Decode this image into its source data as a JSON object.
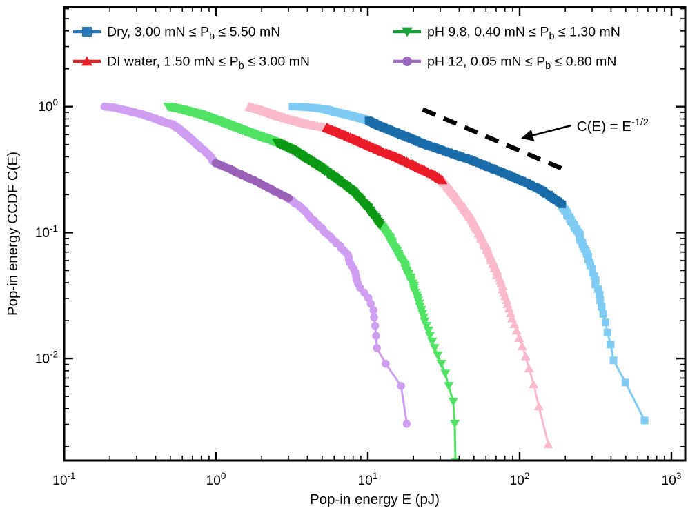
{
  "chart_data": {
    "type": "scatter",
    "title": "",
    "xlabel": "Pop-in energy E (pJ)",
    "ylabel": "Pop-in energy CCDF C(E)",
    "x_scale": "log",
    "y_scale": "log",
    "xlim": [
      0.1,
      1233
    ],
    "ylim": [
      0.00155,
      6.2
    ],
    "grid": false,
    "legend_position": "top",
    "axis_color": "#000000",
    "x_ticks": [
      {
        "base": "10",
        "exp": "-1",
        "value": 0.1
      },
      {
        "base": "10",
        "exp": "0",
        "value": 1
      },
      {
        "base": "10",
        "exp": "1",
        "value": 10
      },
      {
        "base": "10",
        "exp": "2",
        "value": 100
      },
      {
        "base": "10",
        "exp": "3",
        "value": 1000
      }
    ],
    "y_ticks": [
      {
        "base": "10",
        "exp": "0",
        "value": 1
      },
      {
        "base": "10",
        "exp": "-1",
        "value": 0.1
      },
      {
        "base": "10",
        "exp": "-2",
        "value": 0.01
      }
    ],
    "annotation": {
      "text_main": "C(E) = E",
      "text_exp": "-1/2",
      "guide_line": {
        "E": [
          23,
          200
        ],
        "C": [
          0.95,
          0.314
        ]
      },
      "arrow": {
        "E": [
          219,
          105
        ],
        "C": [
          0.709,
          0.565
        ]
      },
      "text_anchor": {
        "E": 238,
        "C": 0.641
      }
    },
    "series": [
      {
        "id": "dry",
        "legend": {
          "pre": "Dry, 3.00 mN ≤ P",
          "sub": "b",
          "post": " ≤ 5.50 mN"
        },
        "marker": "square",
        "color_light": "#7fcbf3",
        "color_dark": "#1a6ca9",
        "legend_color": "#2878b8",
        "dark_E_range": [
          10,
          190
        ],
        "n_events": 310,
        "anchors": [
          [
            3.2,
            1.0
          ],
          [
            3.7,
            0.995
          ],
          [
            4.2,
            0.985
          ],
          [
            5.1,
            0.96
          ],
          [
            6.3,
            0.9
          ],
          [
            7.7,
            0.85
          ],
          [
            10,
            0.78
          ],
          [
            12,
            0.7
          ],
          [
            15,
            0.63
          ],
          [
            19,
            0.56
          ],
          [
            24,
            0.5
          ],
          [
            30,
            0.455
          ],
          [
            39,
            0.41
          ],
          [
            50,
            0.37
          ],
          [
            65,
            0.325
          ],
          [
            90,
            0.277
          ],
          [
            110,
            0.25
          ],
          [
            136,
            0.221
          ],
          [
            160,
            0.195
          ],
          [
            190,
            0.167
          ],
          [
            205,
            0.142
          ],
          [
            220,
            0.12
          ],
          [
            239,
            0.105
          ],
          [
            260,
            0.082
          ],
          [
            278,
            0.067
          ],
          [
            300,
            0.05
          ],
          [
            324,
            0.036
          ],
          [
            342,
            0.028
          ],
          [
            360,
            0.0215
          ],
          [
            380,
            0.016
          ],
          [
            398,
            0.013
          ],
          [
            410,
            0.0105
          ],
          [
            420,
            0.0089
          ],
          [
            432,
            0.0074
          ],
          [
            514,
            0.0063
          ],
          [
            580,
            0.0048
          ],
          [
            664,
            0.0032
          ]
        ]
      },
      {
        "id": "di-water",
        "legend": {
          "pre": "DI water, 1.50 mN ≤ P",
          "sub": "b",
          "post": " ≤ 3.00 mN"
        },
        "marker": "triangle-up",
        "color_light": "#f9b9cb",
        "color_dark": "#ea1c28",
        "legend_color": "#e32228",
        "dark_E_range": [
          5.3,
          31
        ],
        "n_events": 480,
        "anchors": [
          [
            1.65,
            1.0
          ],
          [
            1.9,
            0.96
          ],
          [
            2.2,
            0.9
          ],
          [
            2.6,
            0.84
          ],
          [
            3.1,
            0.79
          ],
          [
            3.7,
            0.745
          ],
          [
            4.4,
            0.71
          ],
          [
            5.3,
            0.685
          ],
          [
            6.3,
            0.63
          ],
          [
            7.6,
            0.575
          ],
          [
            9.2,
            0.52
          ],
          [
            11,
            0.47
          ],
          [
            13.5,
            0.425
          ],
          [
            16.5,
            0.385
          ],
          [
            20,
            0.345
          ],
          [
            24,
            0.31
          ],
          [
            28,
            0.285
          ],
          [
            31,
            0.26
          ],
          [
            36,
            0.21
          ],
          [
            42,
            0.165
          ],
          [
            48,
            0.13
          ],
          [
            54,
            0.1
          ],
          [
            62,
            0.072
          ],
          [
            70,
            0.05
          ],
          [
            78,
            0.035
          ],
          [
            86,
            0.024
          ],
          [
            95,
            0.017
          ],
          [
            105,
            0.012
          ],
          [
            115,
            0.0085
          ],
          [
            123,
            0.0065
          ],
          [
            129,
            0.0048
          ],
          [
            140,
            0.0035
          ],
          [
            148,
            0.0027
          ],
          [
            154,
            0.0021
          ]
        ]
      },
      {
        "id": "ph-9-8",
        "legend": {
          "pre": "pH 9.8, 0.40 mN ≤ P",
          "sub": "b",
          "post": " ≤ 1.30 mN"
        },
        "marker": "triangle-down",
        "color_light": "#50e263",
        "color_dark": "#0c9a14",
        "legend_color": "#19a23b",
        "dark_E_range": [
          2.5,
          12
        ],
        "n_events": 660,
        "anchors": [
          [
            0.48,
            1.0
          ],
          [
            0.55,
            0.97
          ],
          [
            0.65,
            0.92
          ],
          [
            0.78,
            0.87
          ],
          [
            0.92,
            0.81
          ],
          [
            1.1,
            0.75
          ],
          [
            1.35,
            0.68
          ],
          [
            1.6,
            0.63
          ],
          [
            1.9,
            0.585
          ],
          [
            2.2,
            0.55
          ],
          [
            2.5,
            0.52
          ],
          [
            3.2,
            0.45
          ],
          [
            4.0,
            0.38
          ],
          [
            5.0,
            0.32
          ],
          [
            6.3,
            0.26
          ],
          [
            8.0,
            0.21
          ],
          [
            10,
            0.155
          ],
          [
            12,
            0.115
          ],
          [
            13.5,
            0.095
          ],
          [
            15,
            0.075
          ],
          [
            17,
            0.058
          ],
          [
            19,
            0.044
          ],
          [
            21,
            0.032
          ],
          [
            22,
            0.026
          ],
          [
            24,
            0.019
          ],
          [
            26,
            0.0145
          ],
          [
            28,
            0.0115
          ],
          [
            30,
            0.0095
          ],
          [
            32,
            0.008
          ],
          [
            34,
            0.006
          ],
          [
            36,
            0.005
          ],
          [
            37,
            0.0043
          ],
          [
            37.5,
            0.0029
          ],
          [
            38,
            0.0015
          ]
        ]
      },
      {
        "id": "ph-12",
        "legend": {
          "pre": "pH 12, 0.05 mN ≤ P",
          "sub": "b",
          "post": " ≤ 0.80 mN"
        },
        "marker": "circle",
        "color_light": "#cf9df2",
        "color_dark": "#9b61ba",
        "legend_color": "#9d6ac1",
        "dark_E_range": [
          0.98,
          3.05
        ],
        "n_events": 330,
        "anchors": [
          [
            0.185,
            1.0
          ],
          [
            0.21,
            0.985
          ],
          [
            0.24,
            0.95
          ],
          [
            0.28,
            0.91
          ],
          [
            0.33,
            0.865
          ],
          [
            0.39,
            0.81
          ],
          [
            0.46,
            0.75
          ],
          [
            0.51,
            0.73
          ],
          [
            0.58,
            0.655
          ],
          [
            0.66,
            0.575
          ],
          [
            0.75,
            0.5
          ],
          [
            0.82,
            0.455
          ],
          [
            0.9,
            0.41
          ],
          [
            0.98,
            0.36
          ],
          [
            1.2,
            0.325
          ],
          [
            1.5,
            0.285
          ],
          [
            1.9,
            0.25
          ],
          [
            2.4,
            0.215
          ],
          [
            3.05,
            0.185
          ],
          [
            3.4,
            0.168
          ],
          [
            3.8,
            0.151
          ],
          [
            4.4,
            0.125
          ],
          [
            5.1,
            0.104
          ],
          [
            6.0,
            0.086
          ],
          [
            7.2,
            0.07
          ],
          [
            8.3,
            0.048
          ],
          [
            8.9,
            0.036
          ],
          [
            10.3,
            0.0295
          ],
          [
            11.0,
            0.023
          ],
          [
            11.15,
            0.018
          ],
          [
            11.3,
            0.0148
          ],
          [
            11.5,
            0.0115
          ],
          [
            13.2,
            0.0089
          ],
          [
            16.7,
            0.006
          ],
          [
            18.1,
            0.003
          ]
        ]
      }
    ]
  }
}
